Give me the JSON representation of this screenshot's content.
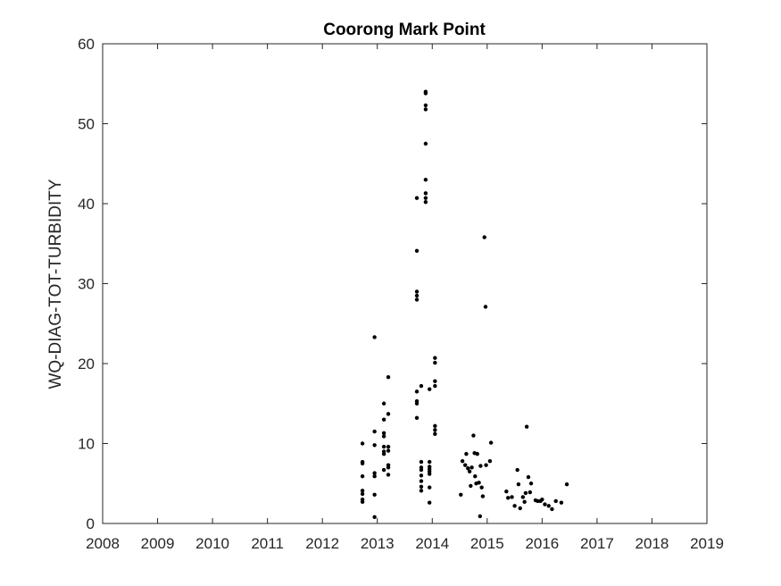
{
  "chart_data": {
    "type": "scatter",
    "title": "Coorong Mark Point",
    "xlabel": "",
    "ylabel": "WQ-DIAG-TOT-TURBIDITY",
    "xlim": [
      2008,
      2019
    ],
    "ylim": [
      0,
      60
    ],
    "xticks": [
      "2008",
      "2009",
      "2010",
      "2011",
      "2012",
      "2013",
      "2014",
      "2015",
      "2016",
      "2017",
      "2018",
      "2019"
    ],
    "yticks": [
      "0",
      "10",
      "20",
      "30",
      "40",
      "50",
      "60"
    ],
    "grid": false,
    "marker_color": "#000000",
    "series": [
      {
        "points": [
          [
            2012.73,
            10.0
          ],
          [
            2012.73,
            7.7
          ],
          [
            2012.73,
            7.5
          ],
          [
            2012.73,
            5.9
          ],
          [
            2012.73,
            4.1
          ],
          [
            2012.73,
            3.7
          ],
          [
            2012.73,
            3.0
          ],
          [
            2012.73,
            2.7
          ],
          [
            2012.95,
            23.3
          ],
          [
            2012.95,
            11.5
          ],
          [
            2012.95,
            9.8
          ],
          [
            2012.95,
            6.3
          ],
          [
            2012.95,
            5.9
          ],
          [
            2012.95,
            3.6
          ],
          [
            2012.95,
            0.8
          ],
          [
            2013.12,
            15.0
          ],
          [
            2013.12,
            13.0
          ],
          [
            2013.12,
            11.3
          ],
          [
            2013.12,
            10.9
          ],
          [
            2013.12,
            9.6
          ],
          [
            2013.12,
            9.0
          ],
          [
            2013.12,
            8.7
          ],
          [
            2013.12,
            6.7
          ],
          [
            2013.2,
            18.3
          ],
          [
            2013.2,
            13.7
          ],
          [
            2013.2,
            9.6
          ],
          [
            2013.2,
            9.1
          ],
          [
            2013.2,
            7.3
          ],
          [
            2013.2,
            7.0
          ],
          [
            2013.2,
            6.1
          ],
          [
            2013.72,
            40.7
          ],
          [
            2013.72,
            34.1
          ],
          [
            2013.72,
            29.0
          ],
          [
            2013.72,
            28.5
          ],
          [
            2013.72,
            28.0
          ],
          [
            2013.72,
            16.5
          ],
          [
            2013.72,
            15.3
          ],
          [
            2013.72,
            15.0
          ],
          [
            2013.72,
            13.2
          ],
          [
            2013.8,
            17.2
          ],
          [
            2013.8,
            7.7
          ],
          [
            2013.8,
            7.0
          ],
          [
            2013.8,
            6.7
          ],
          [
            2013.8,
            6.0
          ],
          [
            2013.8,
            5.3
          ],
          [
            2013.8,
            4.6
          ],
          [
            2013.8,
            4.1
          ],
          [
            2013.88,
            54.0
          ],
          [
            2013.88,
            53.8
          ],
          [
            2013.88,
            52.3
          ],
          [
            2013.88,
            51.8
          ],
          [
            2013.88,
            47.5
          ],
          [
            2013.88,
            43.0
          ],
          [
            2013.88,
            41.3
          ],
          [
            2013.88,
            40.7
          ],
          [
            2013.88,
            40.2
          ],
          [
            2013.95,
            16.8
          ],
          [
            2013.95,
            7.7
          ],
          [
            2013.95,
            7.1
          ],
          [
            2013.95,
            6.8
          ],
          [
            2013.95,
            6.5
          ],
          [
            2013.95,
            6.2
          ],
          [
            2013.95,
            4.5
          ],
          [
            2013.95,
            2.6
          ],
          [
            2014.05,
            20.7
          ],
          [
            2014.05,
            20.1
          ],
          [
            2014.05,
            17.8
          ],
          [
            2014.05,
            17.2
          ],
          [
            2014.05,
            12.2
          ],
          [
            2014.05,
            11.7
          ],
          [
            2014.05,
            11.2
          ],
          [
            2014.55,
            7.8
          ],
          [
            2014.6,
            7.3
          ],
          [
            2014.62,
            8.7
          ],
          [
            2014.65,
            6.9
          ],
          [
            2014.68,
            6.5
          ],
          [
            2014.7,
            4.7
          ],
          [
            2014.72,
            7.0
          ],
          [
            2014.75,
            11.0
          ],
          [
            2014.77,
            8.8
          ],
          [
            2014.78,
            5.9
          ],
          [
            2014.82,
            8.7
          ],
          [
            2014.85,
            5.1
          ],
          [
            2014.88,
            7.2
          ],
          [
            2014.9,
            4.5
          ],
          [
            2014.92,
            3.4
          ],
          [
            2014.95,
            35.8
          ],
          [
            2014.97,
            27.1
          ],
          [
            2014.98,
            7.3
          ],
          [
            2014.87,
            0.9
          ],
          [
            2015.07,
            10.1
          ],
          [
            2015.05,
            7.8
          ],
          [
            2014.52,
            3.6
          ],
          [
            2014.8,
            5.0
          ],
          [
            2015.35,
            4.0
          ],
          [
            2015.38,
            3.2
          ],
          [
            2015.45,
            3.3
          ],
          [
            2015.5,
            2.2
          ],
          [
            2015.55,
            6.7
          ],
          [
            2015.57,
            4.9
          ],
          [
            2015.6,
            1.9
          ],
          [
            2015.65,
            3.3
          ],
          [
            2015.68,
            2.7
          ],
          [
            2015.7,
            3.8
          ],
          [
            2015.72,
            12.1
          ],
          [
            2015.75,
            5.8
          ],
          [
            2015.78,
            3.9
          ],
          [
            2015.8,
            5.0
          ],
          [
            2015.88,
            2.9
          ],
          [
            2015.92,
            2.8
          ],
          [
            2015.97,
            2.8
          ],
          [
            2016.0,
            3.0
          ],
          [
            2016.05,
            2.4
          ],
          [
            2016.12,
            2.2
          ],
          [
            2016.18,
            1.8
          ],
          [
            2016.25,
            2.8
          ],
          [
            2016.35,
            2.6
          ],
          [
            2016.45,
            4.9
          ]
        ]
      }
    ]
  }
}
